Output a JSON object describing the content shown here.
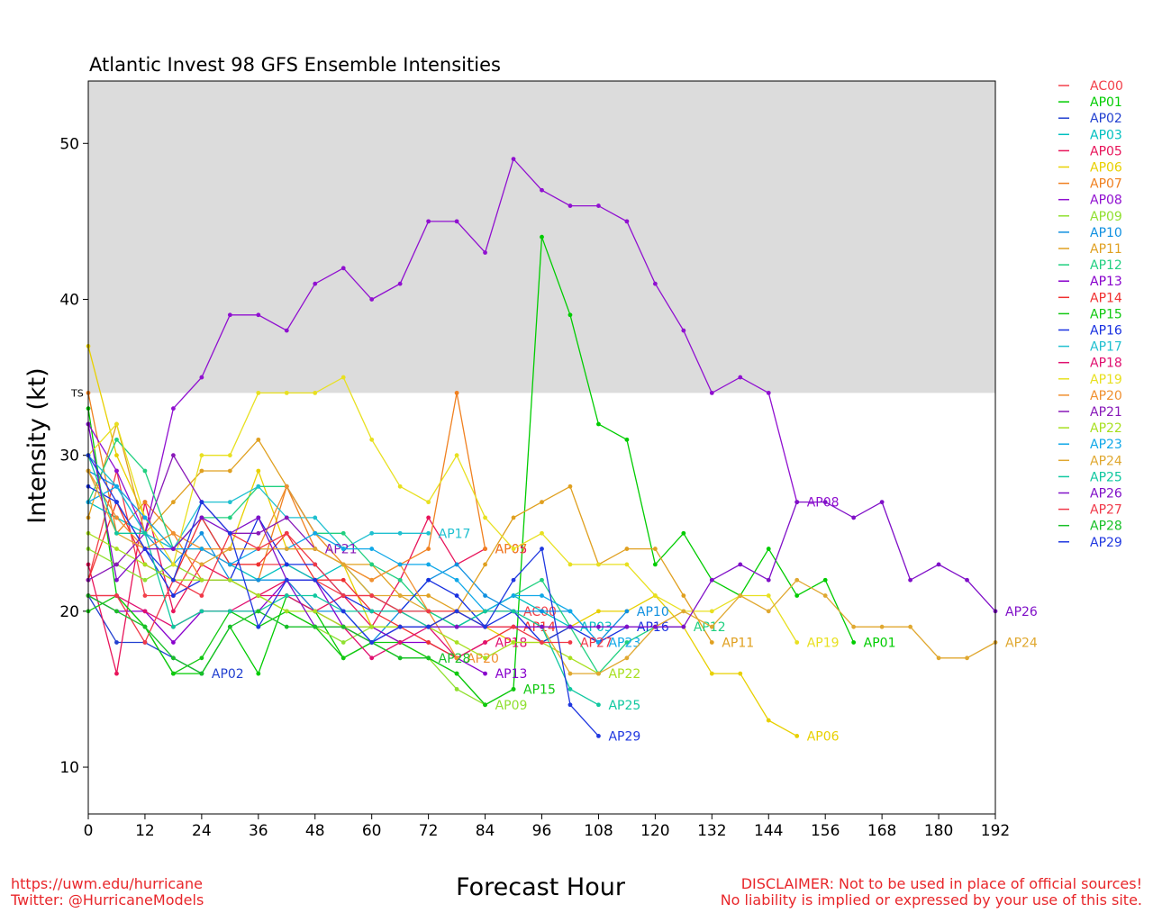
{
  "chart_data": {
    "type": "line",
    "title": "Atlantic Invest 98 GFS Ensemble Intensities",
    "xlabel": "Forecast Hour",
    "ylabel": "Intensity (kt)",
    "xlim": [
      0,
      192
    ],
    "ylim": [
      7,
      54
    ],
    "xticks": [
      0,
      12,
      24,
      36,
      48,
      60,
      72,
      84,
      96,
      108,
      120,
      132,
      144,
      156,
      168,
      180,
      192
    ],
    "yticks": [
      10,
      20,
      30,
      40,
      50
    ],
    "ts_threshold": 34,
    "ts_label": "TS",
    "ts_band_color": "#dcdcdc",
    "legend_position": "right",
    "series": [
      {
        "name": "AC00",
        "color": "#f2404a",
        "x": [
          0,
          6,
          12,
          18,
          24,
          30,
          36,
          42,
          48,
          54,
          60,
          66,
          72,
          78,
          84,
          90
        ],
        "y": [
          22,
          29,
          21,
          21,
          24,
          23,
          23,
          23,
          22,
          21,
          21,
          20,
          19,
          20,
          20,
          20
        ]
      },
      {
        "name": "AP01",
        "color": "#00cc00",
        "x": [
          0,
          6,
          12,
          18,
          24,
          30,
          36,
          42,
          48,
          54,
          60,
          66,
          72,
          78,
          84,
          90,
          96,
          102,
          108,
          114,
          120,
          126,
          132,
          138,
          144,
          150,
          156,
          162
        ],
        "y": [
          33,
          21,
          19,
          16,
          16,
          19,
          16,
          21,
          20,
          17,
          18,
          17,
          17,
          16,
          14,
          15,
          44,
          39,
          32,
          31,
          23,
          25,
          22,
          21,
          24,
          21,
          22,
          18
        ]
      },
      {
        "name": "AP02",
        "color": "#2240d0",
        "x": [
          0,
          6,
          12,
          18,
          24
        ],
        "y": [
          21,
          18,
          18,
          17,
          16
        ]
      },
      {
        "name": "AP03",
        "color": "#00c0c0",
        "x": [
          0,
          6,
          12,
          18,
          24,
          30,
          36,
          42,
          48,
          54,
          60,
          66,
          72,
          78,
          84,
          90,
          96,
          102
        ],
        "y": [
          27,
          26,
          25,
          24,
          26,
          23,
          22,
          23,
          22,
          23,
          21,
          20,
          20,
          19,
          20,
          21,
          20,
          19
        ]
      },
      {
        "name": "AP05",
        "color": "#e8145a",
        "x": [
          0,
          6,
          12,
          18,
          24,
          30,
          36,
          42,
          48,
          54,
          60,
          66,
          72,
          78,
          84
        ],
        "y": [
          23,
          16,
          27,
          20,
          23,
          22,
          21,
          22,
          20,
          21,
          19,
          22,
          26,
          23,
          24
        ]
      },
      {
        "name": "AP06",
        "color": "#e8d000",
        "x": [
          0,
          6,
          12,
          18,
          24,
          30,
          36,
          42,
          48,
          54,
          60,
          66,
          72,
          78,
          84,
          90,
          96,
          102,
          108,
          114,
          120,
          126,
          132,
          138,
          144,
          150
        ],
        "y": [
          37,
          30,
          26,
          24,
          24,
          24,
          29,
          24,
          24,
          23,
          19,
          19,
          19,
          20,
          19,
          18,
          18,
          19,
          20,
          20,
          21,
          19,
          16,
          16,
          13,
          12
        ]
      },
      {
        "name": "AP07",
        "color": "#f08020",
        "x": [
          0,
          6,
          12,
          18,
          24,
          30,
          36,
          42,
          48,
          54,
          60,
          66,
          72,
          78,
          84
        ],
        "y": [
          34,
          25,
          27,
          25,
          22,
          22,
          22,
          28,
          24,
          23,
          22,
          23,
          24,
          34,
          24
        ]
      },
      {
        "name": "AP08",
        "color": "#9010d0",
        "x": [
          0,
          6,
          12,
          18,
          24,
          30,
          36,
          42,
          48,
          54,
          60,
          66,
          72,
          78,
          84,
          90,
          96,
          102,
          108,
          114,
          120,
          126,
          132,
          138,
          144,
          150
        ],
        "y": [
          32,
          29,
          25,
          33,
          35,
          39,
          39,
          38,
          41,
          42,
          40,
          41,
          45,
          45,
          43,
          49,
          47,
          46,
          46,
          45,
          41,
          38,
          34,
          35,
          34,
          27
        ]
      },
      {
        "name": "AP09",
        "color": "#90e030",
        "x": [
          0,
          6,
          12,
          18,
          24,
          30,
          36,
          42,
          48,
          54,
          60,
          66,
          72,
          78,
          84
        ],
        "y": [
          24,
          23,
          22,
          23,
          22,
          22,
          21,
          20,
          19,
          18,
          19,
          18,
          17,
          15,
          14
        ]
      },
      {
        "name": "AP10",
        "color": "#1090e0",
        "x": [
          0,
          6,
          12,
          18,
          24,
          30,
          36,
          42,
          48,
          54,
          60,
          66,
          72,
          78,
          84,
          90,
          96,
          102,
          108,
          114
        ],
        "y": [
          29,
          28,
          25,
          23,
          25,
          22,
          22,
          22,
          20,
          20,
          18,
          20,
          22,
          23,
          21,
          20,
          20,
          20,
          18,
          20
        ]
      },
      {
        "name": "AP11",
        "color": "#e0a020",
        "x": [
          0,
          6,
          12,
          18,
          24,
          30,
          36,
          42,
          48,
          54,
          60,
          66,
          72,
          78,
          84,
          90,
          96,
          102,
          108,
          114,
          120,
          126,
          132
        ],
        "y": [
          26,
          32,
          25,
          27,
          29,
          29,
          31,
          28,
          25,
          23,
          23,
          21,
          21,
          20,
          23,
          26,
          27,
          28,
          23,
          24,
          24,
          21,
          18
        ]
      },
      {
        "name": "AP12",
        "color": "#20d080",
        "x": [
          0,
          6,
          12,
          18,
          24,
          30,
          36,
          42,
          48,
          54,
          60,
          66,
          72,
          78,
          84,
          90,
          96,
          102,
          108,
          114,
          120,
          126
        ],
        "y": [
          27,
          31,
          29,
          24,
          26,
          26,
          28,
          28,
          25,
          25,
          23,
          22,
          20,
          19,
          20,
          21,
          22,
          19,
          16,
          18,
          19,
          19
        ]
      },
      {
        "name": "AP13",
        "color": "#8800cc",
        "x": [
          0,
          6,
          12,
          18,
          24,
          30,
          36,
          42,
          48,
          54,
          60,
          66,
          72,
          78,
          84
        ],
        "y": [
          21,
          20,
          20,
          18,
          20,
          20,
          20,
          22,
          22,
          19,
          19,
          18,
          18,
          17,
          16
        ]
      },
      {
        "name": "AP14",
        "color": "#f03030",
        "x": [
          0,
          6,
          12,
          18,
          24,
          30,
          36,
          42,
          48,
          54,
          60,
          66,
          72,
          78,
          84,
          90
        ],
        "y": [
          22,
          27,
          23,
          22,
          26,
          23,
          23,
          25,
          22,
          22,
          20,
          19,
          18,
          17,
          18,
          19
        ]
      },
      {
        "name": "AP15",
        "color": "#10c810",
        "x": [
          0,
          6,
          12,
          18,
          24,
          30,
          36,
          42,
          48,
          54,
          60,
          66,
          72,
          78,
          84,
          90
        ],
        "y": [
          20,
          21,
          19,
          16,
          17,
          20,
          19,
          20,
          19,
          17,
          18,
          18,
          17,
          16,
          14,
          15
        ]
      },
      {
        "name": "AP16",
        "color": "#1830e0",
        "x": [
          0,
          6,
          12,
          18,
          24,
          30,
          36,
          42,
          48,
          54,
          60,
          66,
          72,
          78,
          84,
          90,
          96,
          102,
          108,
          114
        ],
        "y": [
          28,
          27,
          24,
          21,
          22,
          22,
          26,
          23,
          23,
          21,
          20,
          20,
          22,
          21,
          19,
          20,
          18,
          19,
          18,
          19
        ]
      },
      {
        "name": "AP17",
        "color": "#20c0d0",
        "x": [
          0,
          6,
          12,
          18,
          24,
          30,
          36,
          42,
          48,
          54,
          60,
          66,
          72
        ],
        "y": [
          30,
          28,
          25,
          24,
          27,
          27,
          28,
          26,
          26,
          24,
          25,
          25,
          25
        ]
      },
      {
        "name": "AP18",
        "color": "#e01070",
        "x": [
          0,
          6,
          12,
          18,
          24,
          30,
          36,
          42,
          48,
          54,
          60,
          66,
          72,
          78,
          84
        ],
        "y": [
          21,
          21,
          20,
          19,
          20,
          20,
          21,
          21,
          20,
          19,
          17,
          18,
          19,
          17,
          18
        ]
      },
      {
        "name": "AP19",
        "color": "#e8e020",
        "x": [
          0,
          6,
          12,
          18,
          24,
          30,
          36,
          42,
          48,
          54,
          60,
          66,
          72,
          78,
          84,
          90,
          96,
          102,
          108,
          114,
          120,
          126,
          132,
          138,
          144,
          150
        ],
        "y": [
          30,
          32,
          26,
          23,
          30,
          30,
          34,
          34,
          34,
          35,
          31,
          28,
          27,
          30,
          26,
          24,
          25,
          23,
          23,
          23,
          21,
          20,
          20,
          21,
          21,
          18
        ]
      },
      {
        "name": "AP20",
        "color": "#f09030",
        "x": [
          0,
          6,
          12,
          18,
          24,
          30,
          36,
          42,
          48,
          54,
          60,
          66,
          72,
          78
        ],
        "y": [
          29,
          26,
          24,
          25,
          24,
          24,
          24,
          28,
          25,
          23,
          22,
          23,
          20,
          17
        ]
      },
      {
        "name": "AP21",
        "color": "#8818b8",
        "x": [
          0,
          6,
          12,
          18,
          24,
          30,
          36,
          42,
          48
        ],
        "y": [
          22,
          23,
          25,
          30,
          27,
          25,
          25,
          26,
          24
        ]
      },
      {
        "name": "AP22",
        "color": "#a8e020",
        "x": [
          0,
          6,
          12,
          18,
          24,
          30,
          36,
          42,
          48,
          54,
          60,
          66,
          72,
          78,
          84,
          90,
          96,
          102,
          108
        ],
        "y": [
          25,
          24,
          23,
          22,
          22,
          22,
          21,
          20,
          20,
          19,
          19,
          19,
          19,
          18,
          17,
          18,
          18,
          17,
          16
        ]
      },
      {
        "name": "AP23",
        "color": "#10a8e8",
        "x": [
          0,
          6,
          12,
          18,
          24,
          30,
          36,
          42,
          48,
          54,
          60,
          66,
          72,
          78,
          84,
          90,
          96,
          102,
          108
        ],
        "y": [
          27,
          28,
          26,
          24,
          24,
          23,
          24,
          24,
          25,
          24,
          24,
          23,
          23,
          22,
          20,
          21,
          21,
          20,
          18
        ]
      },
      {
        "name": "AP24",
        "color": "#e0a830",
        "x": [
          0,
          6,
          12,
          18,
          24,
          30,
          36,
          42,
          48,
          54,
          60,
          66,
          72,
          78,
          84,
          90,
          96,
          102,
          108,
          114,
          120,
          126,
          132,
          138,
          144,
          150,
          156,
          162,
          168,
          174,
          180,
          186,
          192
        ],
        "y": [
          29,
          25,
          24,
          24,
          23,
          24,
          24,
          24,
          24,
          23,
          21,
          21,
          20,
          20,
          20,
          20,
          19,
          16,
          16,
          17,
          19,
          20,
          19,
          21,
          20,
          22,
          21,
          19,
          19,
          19,
          17,
          17,
          18
        ]
      },
      {
        "name": "AP25",
        "color": "#10c8a0",
        "x": [
          0,
          6,
          12,
          18,
          24,
          30,
          36,
          42,
          48,
          54,
          60,
          66,
          72,
          78,
          84,
          90,
          96,
          102,
          108
        ],
        "y": [
          30,
          25,
          25,
          19,
          20,
          20,
          20,
          21,
          21,
          20,
          20,
          20,
          19,
          19,
          20,
          20,
          19,
          15,
          14
        ]
      },
      {
        "name": "AP26",
        "color": "#8010c8",
        "x": [
          0,
          6,
          12,
          18,
          24,
          30,
          36,
          42,
          48,
          54,
          60,
          66,
          72,
          78,
          84,
          90,
          96,
          102,
          108,
          114,
          120,
          126,
          132,
          138,
          144,
          150,
          156,
          162,
          168,
          174,
          180,
          186,
          192
        ],
        "y": [
          32,
          22,
          24,
          24,
          26,
          25,
          26,
          22,
          19,
          19,
          18,
          19,
          19,
          19,
          19,
          19,
          19,
          19,
          19,
          19,
          19,
          19,
          22,
          23,
          22,
          27,
          27,
          26,
          27,
          22,
          23,
          22,
          20
        ]
      },
      {
        "name": "AP27",
        "color": "#f03848",
        "x": [
          0,
          6,
          12,
          18,
          24,
          30,
          36,
          42,
          48,
          54,
          60,
          66,
          72,
          78,
          84,
          90,
          96,
          102
        ],
        "y": [
          21,
          21,
          18,
          22,
          21,
          25,
          24,
          25,
          23,
          21,
          21,
          20,
          20,
          20,
          19,
          19,
          18,
          18
        ]
      },
      {
        "name": "AP28",
        "color": "#18c028",
        "x": [
          0,
          6,
          12,
          18,
          24,
          30,
          36,
          42,
          48,
          54,
          60,
          66,
          72
        ],
        "y": [
          21,
          20,
          19,
          17,
          16,
          19,
          20,
          19,
          19,
          19,
          18,
          17,
          17
        ]
      },
      {
        "name": "AP29",
        "color": "#2038e0",
        "x": [
          0,
          6,
          12,
          18,
          24,
          30,
          36,
          42,
          48,
          54,
          60,
          66,
          72,
          78,
          84,
          90,
          96,
          102,
          108
        ],
        "y": [
          30,
          27,
          24,
          22,
          27,
          25,
          19,
          22,
          22,
          20,
          18,
          19,
          19,
          20,
          19,
          22,
          24,
          14,
          12
        ]
      }
    ]
  },
  "footer": {
    "url": "https://uwm.edu/hurricane",
    "twitter": "Twitter: @HurricaneModels",
    "disclaimer_1": "DISCLAIMER: Not to be used in place of official sources!",
    "disclaimer_2": "No liability is implied or expressed by your use of this site."
  }
}
